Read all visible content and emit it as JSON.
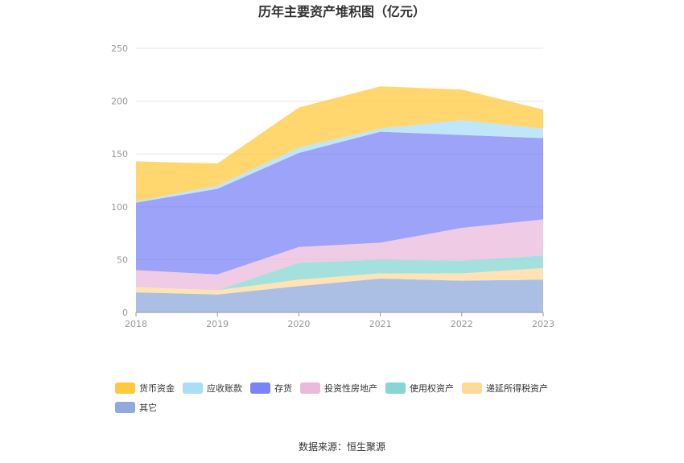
{
  "chart_data": {
    "type": "area",
    "stacked": true,
    "title": "历年主要资产堆积图（亿元）",
    "x": [
      "2018",
      "2019",
      "2020",
      "2021",
      "2022",
      "2023"
    ],
    "ylim": [
      0,
      250
    ],
    "yticks": [
      0,
      50,
      100,
      150,
      200,
      250
    ],
    "grid": true,
    "legend_position": "bottom-left",
    "series": [
      {
        "name": "其它",
        "color": "#8FAADC",
        "values": [
          19,
          17,
          25,
          32,
          30,
          31
        ]
      },
      {
        "name": "递延所得税资产",
        "color": "#FFD99A",
        "values": [
          5,
          4,
          6,
          5,
          7,
          11
        ]
      },
      {
        "name": "使用权资产",
        "color": "#86D7D3",
        "values": [
          0,
          0,
          16,
          13,
          12,
          12
        ]
      },
      {
        "name": "投资性房地产",
        "color": "#EBB9DC",
        "values": [
          16,
          15,
          15,
          16,
          31,
          34
        ]
      },
      {
        "name": "存货",
        "color": "#7B84F6",
        "values": [
          64,
          81,
          89,
          105,
          88,
          77
        ]
      },
      {
        "name": "应收账款",
        "color": "#A9DEF7",
        "values": [
          1,
          3,
          5,
          3,
          14,
          9
        ]
      },
      {
        "name": "货币资金",
        "color": "#FFC93E",
        "values": [
          38,
          21,
          38,
          40,
          29,
          18
        ]
      }
    ],
    "legend_order": [
      "货币资金",
      "应收账款",
      "存货",
      "投资性房地产",
      "使用权资产",
      "递延所得税资产",
      "其它"
    ]
  },
  "footer": {
    "source": "数据来源：恒生聚源"
  }
}
